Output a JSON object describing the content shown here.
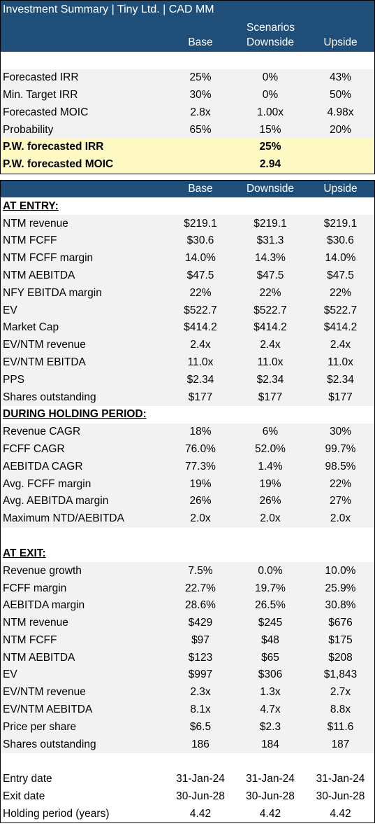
{
  "title": "Investment Summary | Tiny Ltd. | CAD MM",
  "scenarios_label": "Scenarios",
  "columns": [
    "Base",
    "Downside",
    "Upside"
  ],
  "summary": [
    {
      "label": "Forecasted IRR",
      "values": [
        "25%",
        "0%",
        "43%"
      ]
    },
    {
      "label": "Min. Target IRR",
      "values": [
        "30%",
        "0%",
        "50%"
      ]
    },
    {
      "label": "Forecasted MOIC",
      "values": [
        "2.8x",
        "1.00x",
        "4.98x"
      ]
    },
    {
      "label": "Probability",
      "values": [
        "65%",
        "15%",
        "20%"
      ]
    }
  ],
  "weighted": [
    {
      "label": "P.W. forecasted IRR",
      "value": "25%"
    },
    {
      "label": "P.W. forecasted MOIC",
      "value": "2.94"
    }
  ],
  "entry": {
    "heading": "AT ENTRY:",
    "rows": [
      {
        "label": "NTM revenue",
        "values": [
          "$219.1",
          "$219.1",
          "$219.1"
        ]
      },
      {
        "label": "NTM FCFF",
        "values": [
          "$30.6",
          "$31.3",
          "$30.6"
        ]
      },
      {
        "label": "NTM FCFF margin",
        "values": [
          "14.0%",
          "14.3%",
          "14.0%"
        ]
      },
      {
        "label": "NTM AEBITDA",
        "values": [
          "$47.5",
          "$47.5",
          "$47.5"
        ]
      },
      {
        "label": "NFY EBITDA margin",
        "values": [
          "22%",
          "22%",
          "22%"
        ]
      },
      {
        "label": "EV",
        "values": [
          "$522.7",
          "$522.7",
          "$522.7"
        ]
      },
      {
        "label": "Market Cap",
        "values": [
          "$414.2",
          "$414.2",
          "$414.2"
        ]
      },
      {
        "label": "EV/NTM revenue",
        "values": [
          "2.4x",
          "2.4x",
          "2.4x"
        ]
      },
      {
        "label": "EV/NTM EBITDA",
        "values": [
          "11.0x",
          "11.0x",
          "11.0x"
        ]
      },
      {
        "label": "PPS",
        "values": [
          "$2.34",
          "$2.34",
          "$2.34"
        ]
      },
      {
        "label": "Shares outstanding",
        "values": [
          "$177",
          "$177",
          "$177"
        ]
      }
    ]
  },
  "holding": {
    "heading": "DURING HOLDING PERIOD:",
    "rows": [
      {
        "label": "Revenue CAGR",
        "values": [
          "18%",
          "6%",
          "30%"
        ]
      },
      {
        "label": "FCFF CAGR",
        "values": [
          "76.0%",
          "52.0%",
          "99.7%"
        ]
      },
      {
        "label": "AEBITDA CAGR",
        "values": [
          "77.3%",
          "1.4%",
          "98.5%"
        ]
      },
      {
        "label": "Avg. FCFF margin",
        "values": [
          "19%",
          "19%",
          "22%"
        ]
      },
      {
        "label": "Avg. AEBITDA margin",
        "values": [
          "26%",
          "26%",
          "27%"
        ]
      },
      {
        "label": "Maximum NTD/AEBITDA",
        "values": [
          "2.0x",
          "2.0x",
          "2.0x"
        ]
      }
    ]
  },
  "exit": {
    "heading": "AT EXIT:",
    "rows": [
      {
        "label": "Revenue growth",
        "values": [
          "7.5%",
          "0.0%",
          "10.0%"
        ]
      },
      {
        "label": "FCFF margin",
        "values": [
          "22.7%",
          "19.7%",
          "25.9%"
        ]
      },
      {
        "label": "AEBITDA margin",
        "values": [
          "28.6%",
          "26.5%",
          "30.8%"
        ]
      },
      {
        "label": "NTM revenue",
        "values": [
          "$429",
          "$245",
          "$676"
        ]
      },
      {
        "label": "NTM FCFF",
        "values": [
          "$97",
          "$48",
          "$175"
        ]
      },
      {
        "label": "NTM AEBITDA",
        "values": [
          "$123",
          "$65",
          "$208"
        ]
      },
      {
        "label": "EV",
        "values": [
          "$997",
          "$306",
          "$1,843"
        ]
      },
      {
        "label": "EV/NTM revenue",
        "values": [
          "2.3x",
          "1.3x",
          "2.7x"
        ]
      },
      {
        "label": "EV/NTM AEBITDA",
        "values": [
          "8.1x",
          "4.7x",
          "8.8x"
        ]
      },
      {
        "label": "Price per share",
        "values": [
          "$6.5",
          "$2.3",
          "$11.6"
        ]
      },
      {
        "label": "Shares outstanding",
        "values": [
          "186",
          "184",
          "187"
        ]
      }
    ]
  },
  "dates": [
    {
      "label": "Entry date",
      "values": [
        "31-Jan-24",
        "31-Jan-24",
        "31-Jan-24"
      ]
    },
    {
      "label": "Exit date",
      "values": [
        "30-Jun-28",
        "30-Jun-28",
        "30-Jun-28"
      ]
    },
    {
      "label": "Holding period (years)",
      "values": [
        "4.42",
        "4.42",
        "4.42"
      ]
    }
  ]
}
